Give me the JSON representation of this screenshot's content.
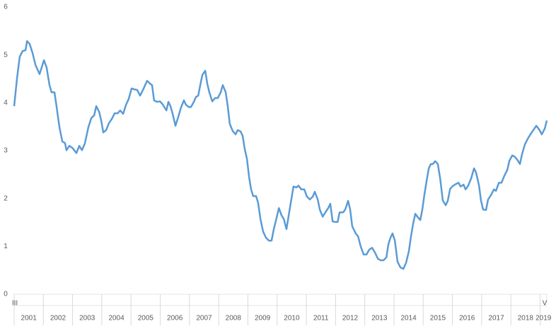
{
  "chart_data": {
    "type": "line",
    "x": [
      2001.0,
      2001.1,
      2001.19,
      2001.29,
      2001.39,
      2001.44,
      2001.53,
      2001.63,
      2001.73,
      2001.87,
      2002.02,
      2002.11,
      2002.21,
      2002.28,
      2002.38,
      2002.45,
      2002.55,
      2002.65,
      2002.74,
      2002.79,
      2002.89,
      2002.99,
      2003.13,
      2003.23,
      2003.32,
      2003.42,
      2003.54,
      2003.64,
      2003.74,
      2003.81,
      2003.91,
      2003.98,
      2004.05,
      2004.15,
      2004.24,
      2004.34,
      2004.44,
      2004.54,
      2004.63,
      2004.73,
      2004.83,
      2004.92,
      2005.02,
      2005.12,
      2005.21,
      2005.31,
      2005.41,
      2005.55,
      2005.65,
      2005.72,
      2005.79,
      2005.89,
      2005.99,
      2006.08,
      2006.21,
      2006.28,
      2006.35,
      2006.42,
      2006.52,
      2006.62,
      2006.71,
      2006.81,
      2006.88,
      2006.98,
      2007.05,
      2007.15,
      2007.22,
      2007.3,
      2007.37,
      2007.44,
      2007.54,
      2007.61,
      2007.68,
      2007.78,
      2007.88,
      2007.97,
      2008.07,
      2008.14,
      2008.24,
      2008.31,
      2008.38,
      2008.48,
      2008.58,
      2008.65,
      2008.75,
      2008.82,
      2008.89,
      2008.97,
      2009.04,
      2009.11,
      2009.18,
      2009.28,
      2009.35,
      2009.43,
      2009.52,
      2009.62,
      2009.72,
      2009.81,
      2009.89,
      2009.96,
      2010.06,
      2010.15,
      2010.23,
      2010.32,
      2010.39,
      2010.47,
      2010.56,
      2010.66,
      2010.73,
      2010.83,
      2010.93,
      2011.02,
      2011.12,
      2011.22,
      2011.29,
      2011.39,
      2011.46,
      2011.56,
      2011.65,
      2011.75,
      2011.82,
      2011.9,
      2011.99,
      2012.07,
      2012.14,
      2012.26,
      2012.33,
      2012.43,
      2012.5,
      2012.57,
      2012.69,
      2012.77,
      2012.86,
      2012.96,
      2013.06,
      2013.15,
      2013.25,
      2013.35,
      2013.45,
      2013.54,
      2013.64,
      2013.74,
      2013.81,
      2013.88,
      2013.95,
      2014.03,
      2014.12,
      2014.22,
      2014.32,
      2014.41,
      2014.51,
      2014.58,
      2014.66,
      2014.73,
      2014.8,
      2014.9,
      2014.97,
      2015.04,
      2015.12,
      2015.19,
      2015.26,
      2015.33,
      2015.41,
      2015.5,
      2015.58,
      2015.67,
      2015.77,
      2015.84,
      2015.92,
      2016.01,
      2016.11,
      2016.21,
      2016.28,
      2016.38,
      2016.45,
      2016.54,
      2016.64,
      2016.74,
      2016.81,
      2016.91,
      2016.98,
      2017.05,
      2017.15,
      2017.22,
      2017.32,
      2017.42,
      2017.49,
      2017.59,
      2017.68,
      2017.78,
      2017.88,
      2017.95,
      2018.05,
      2018.14,
      2018.22,
      2018.31,
      2018.38,
      2018.48,
      2018.58,
      2018.68,
      2018.77,
      2018.87,
      2018.97,
      2019.06,
      2019.16,
      2019.23
    ],
    "series": [
      {
        "color": "#5b9bd5",
        "values": [
          3.93,
          4.52,
          4.96,
          5.08,
          5.1,
          5.29,
          5.23,
          5.04,
          4.79,
          4.6,
          4.89,
          4.74,
          4.37,
          4.22,
          4.22,
          3.93,
          3.49,
          3.19,
          3.16,
          3.01,
          3.1,
          3.06,
          2.95,
          3.1,
          3.01,
          3.15,
          3.49,
          3.68,
          3.74,
          3.93,
          3.81,
          3.63,
          3.38,
          3.43,
          3.57,
          3.66,
          3.78,
          3.78,
          3.84,
          3.77,
          3.96,
          4.08,
          4.3,
          4.28,
          4.27,
          4.15,
          4.27,
          4.46,
          4.4,
          4.37,
          4.05,
          4.02,
          4.03,
          3.97,
          3.84,
          4.02,
          3.93,
          3.78,
          3.52,
          3.71,
          3.9,
          4.05,
          3.96,
          3.91,
          3.91,
          4.02,
          4.12,
          4.15,
          4.37,
          4.58,
          4.67,
          4.4,
          4.22,
          4.03,
          4.1,
          4.1,
          4.22,
          4.37,
          4.22,
          3.93,
          3.56,
          3.41,
          3.34,
          3.43,
          3.4,
          3.31,
          3.04,
          2.82,
          2.45,
          2.19,
          2.05,
          2.05,
          1.91,
          1.57,
          1.31,
          1.18,
          1.12,
          1.12,
          1.37,
          1.54,
          1.8,
          1.65,
          1.57,
          1.36,
          1.62,
          1.92,
          2.25,
          2.23,
          2.27,
          2.19,
          2.19,
          2.04,
          1.98,
          2.04,
          2.14,
          1.98,
          1.77,
          1.62,
          1.71,
          1.8,
          1.89,
          1.52,
          1.51,
          1.51,
          1.71,
          1.71,
          1.77,
          1.95,
          1.77,
          1.42,
          1.27,
          1.21,
          1.0,
          0.83,
          0.83,
          0.93,
          0.97,
          0.87,
          0.74,
          0.71,
          0.71,
          0.77,
          1.05,
          1.18,
          1.27,
          1.12,
          0.68,
          0.56,
          0.53,
          0.65,
          0.9,
          1.2,
          1.49,
          1.68,
          1.62,
          1.55,
          1.77,
          2.08,
          2.38,
          2.63,
          2.72,
          2.72,
          2.78,
          2.72,
          2.42,
          1.96,
          1.86,
          1.95,
          2.2,
          2.26,
          2.3,
          2.33,
          2.25,
          2.29,
          2.19,
          2.27,
          2.42,
          2.63,
          2.54,
          2.27,
          1.95,
          1.77,
          1.76,
          1.98,
          2.07,
          2.19,
          2.16,
          2.33,
          2.33,
          2.48,
          2.6,
          2.79,
          2.9,
          2.87,
          2.81,
          2.72,
          2.92,
          3.13,
          3.25,
          3.35,
          3.43,
          3.52,
          3.44,
          3.34,
          3.46,
          3.63
        ]
      }
    ],
    "xlim": [
      2001,
      2019.23
    ],
    "xticks": [
      2001,
      2002,
      2003,
      2004,
      2005,
      2006,
      2007,
      2008,
      2009,
      2010,
      2011,
      2012,
      2013,
      2014,
      2015,
      2016,
      2017,
      2018,
      2019
    ],
    "x_edge_labels": [
      "III",
      "V"
    ],
    "ylim": [
      0,
      6
    ],
    "yticks": [
      0,
      1,
      2,
      3,
      4,
      5,
      6
    ],
    "grid": false
  }
}
